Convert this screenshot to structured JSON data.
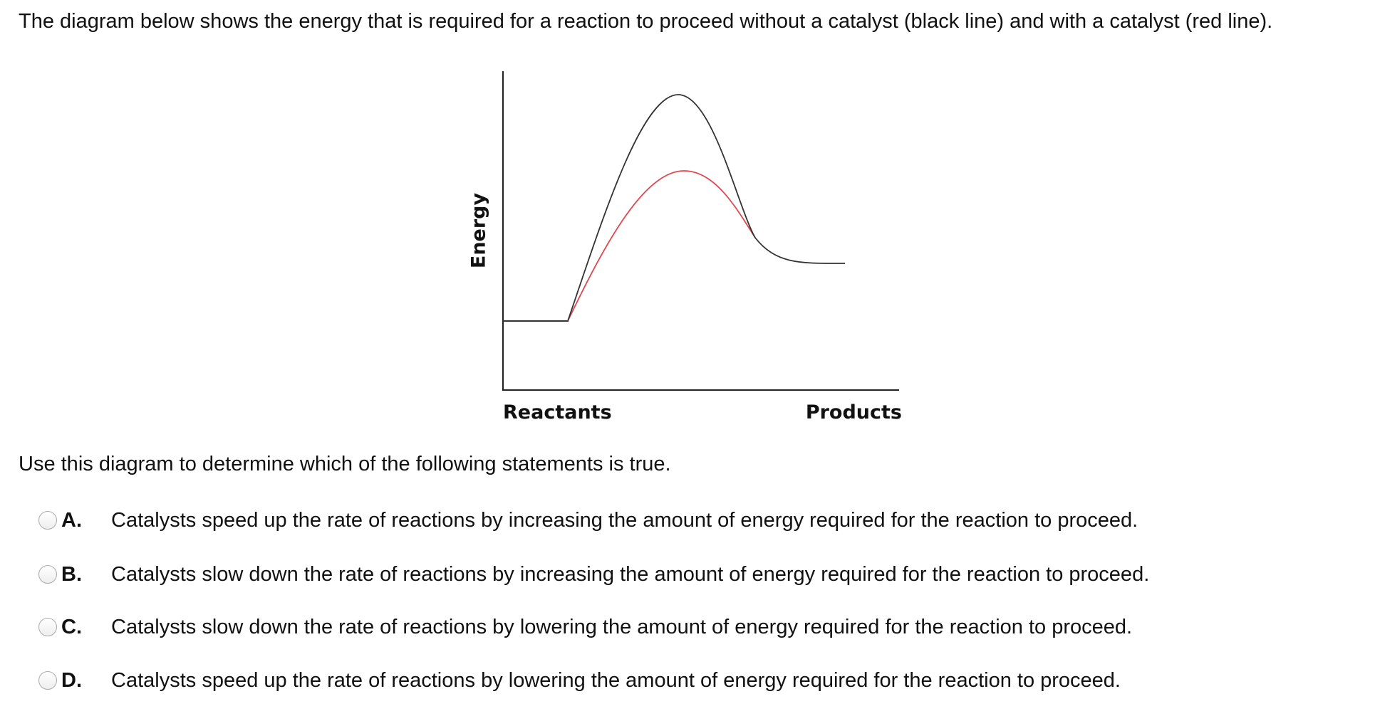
{
  "question": {
    "intro": "The diagram below shows the energy that is required for a reaction to proceed without a catalyst (black line) and with a catalyst (red line).",
    "prompt": "Use this diagram to determine which of the following statements is true."
  },
  "diagram": {
    "y_label": "Energy",
    "x_start_label": "Reactants",
    "x_end_label": "Products",
    "colors": {
      "uncatalyzed": "#333333",
      "catalyzed": "#e0464e"
    }
  },
  "options": [
    {
      "letter": "A.",
      "text": "Catalysts speed up the rate of reactions by increasing the amount of energy required for the reaction to proceed."
    },
    {
      "letter": "B.",
      "text": "Catalysts slow down the rate of reactions by increasing the amount of energy required for the reaction to proceed."
    },
    {
      "letter": "C.",
      "text": "Catalysts slow down the rate of reactions by lowering the amount of energy required for the reaction to proceed."
    },
    {
      "letter": "D.",
      "text": "Catalysts speed up the rate of reactions by lowering the amount of energy required for the reaction to proceed."
    }
  ]
}
